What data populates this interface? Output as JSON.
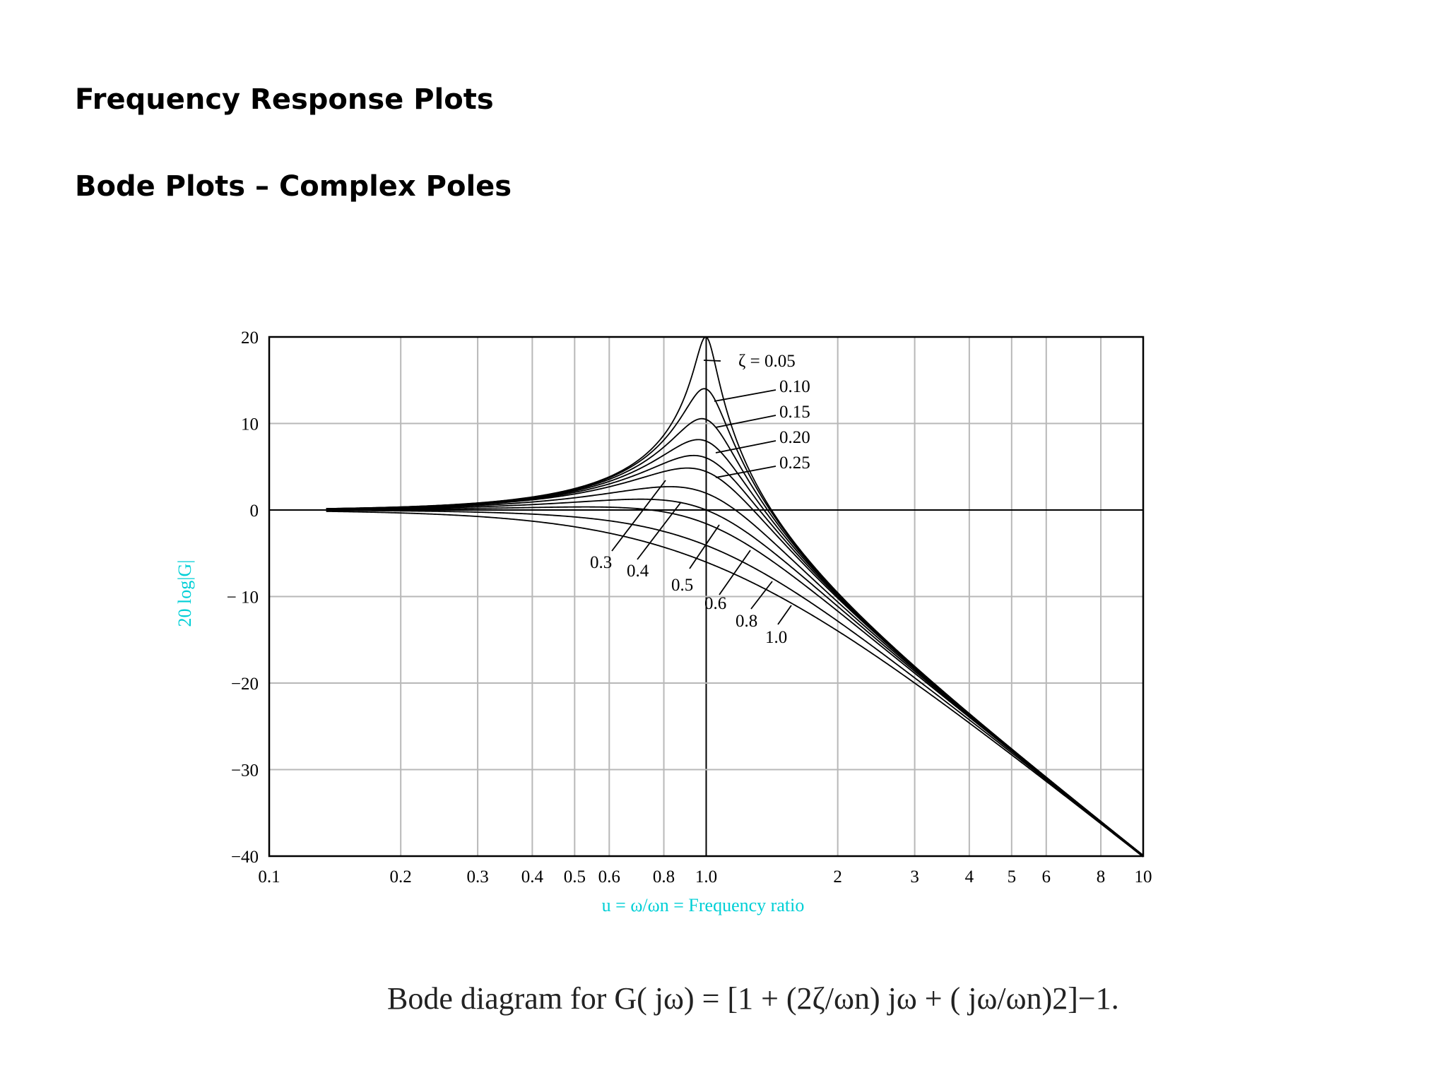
{
  "slide": {
    "title": "Frequency Response Plots",
    "subtitle": "Bode Plots – Complex Poles",
    "caption": "Bode diagram for G( jω) = [1 + (2ζ/ωn) jω + ( jω/ωn)2]−1."
  },
  "chart_data": {
    "type": "line",
    "title": "",
    "xlabel": "u = ω/ωn = Frequency ratio",
    "ylabel": "20 log|G|",
    "x_scale": "log",
    "xlim": [
      0.1,
      10
    ],
    "ylim": [
      -40,
      20
    ],
    "grid": true,
    "x_ticks": [
      0.1,
      0.2,
      0.3,
      0.4,
      0.5,
      0.6,
      0.8,
      1.0,
      2,
      3,
      4,
      5,
      6,
      8,
      10
    ],
    "x_tick_labels": [
      "0.1",
      "0.2",
      "0.3",
      "0.4",
      "0.5",
      "0.6",
      "0.8",
      "1.0",
      "2",
      "3",
      "4",
      "5",
      "6",
      "8",
      "10"
    ],
    "y_ticks": [
      20,
      10,
      0,
      -10,
      -20,
      -30,
      -40
    ],
    "y_tick_labels": [
      "20",
      "10",
      "0",
      "− 10",
      "−20",
      "−30",
      "−40"
    ],
    "zeta_values": [
      0.05,
      0.1,
      0.15,
      0.2,
      0.25,
      0.3,
      0.4,
      0.5,
      0.6,
      0.8,
      1.0
    ],
    "curve_labels": [
      {
        "zeta": 0.05,
        "text": "ζ = 0.05"
      },
      {
        "zeta": 0.1,
        "text": "0.10"
      },
      {
        "zeta": 0.15,
        "text": "0.15"
      },
      {
        "zeta": 0.2,
        "text": "0.20"
      },
      {
        "zeta": 0.25,
        "text": "0.25"
      },
      {
        "zeta": 0.3,
        "text": "0.3"
      },
      {
        "zeta": 0.4,
        "text": "0.4"
      },
      {
        "zeta": 0.5,
        "text": "0.5"
      },
      {
        "zeta": 0.6,
        "text": "0.6"
      },
      {
        "zeta": 0.8,
        "text": "0.8"
      },
      {
        "zeta": 1.0,
        "text": "1.0"
      }
    ],
    "series": [
      {
        "zeta": 0.05,
        "x": [
          0.1,
          0.2,
          0.5,
          0.8,
          1.0,
          2,
          5,
          10
        ],
        "y": [
          0.09,
          0.35,
          2.46,
          8.8,
          20.0,
          -9.5,
          -27.6,
          -40.0
        ]
      },
      {
        "zeta": 0.1,
        "x": [
          0.1,
          0.2,
          0.5,
          0.8,
          1.0,
          2,
          5,
          10
        ],
        "y": [
          0.08,
          0.34,
          2.38,
          8.3,
          14.0,
          -9.6,
          -27.6,
          -40.0
        ]
      },
      {
        "zeta": 0.15,
        "x": [
          0.1,
          0.2,
          0.5,
          0.8,
          1.0,
          2,
          5,
          10
        ],
        "y": [
          0.08,
          0.33,
          2.25,
          7.6,
          10.5,
          -9.7,
          -27.6,
          -40.0
        ]
      },
      {
        "zeta": 0.2,
        "x": [
          0.1,
          0.2,
          0.5,
          0.8,
          1.0,
          2,
          5,
          10
        ],
        "y": [
          0.08,
          0.32,
          2.08,
          6.7,
          8.0,
          -9.8,
          -27.6,
          -40.0
        ]
      },
      {
        "zeta": 0.25,
        "x": [
          0.1,
          0.2,
          0.5,
          0.8,
          1.0,
          2,
          5,
          10
        ],
        "y": [
          0.08,
          0.3,
          1.86,
          5.7,
          6.0,
          -9.9,
          -27.7,
          -40.0
        ]
      },
      {
        "zeta": 0.3,
        "x": [
          0.1,
          0.2,
          0.5,
          0.8,
          1.0,
          2,
          5,
          10
        ],
        "y": [
          0.08,
          0.28,
          1.61,
          4.7,
          4.4,
          -10.1,
          -27.7,
          -40.0
        ]
      },
      {
        "zeta": 0.4,
        "x": [
          0.1,
          0.2,
          0.5,
          0.8,
          1.0,
          2,
          5,
          10
        ],
        "y": [
          0.07,
          0.23,
          1.0,
          2.7,
          1.9,
          -10.6,
          -27.8,
          -40.0
        ]
      },
      {
        "zeta": 0.5,
        "x": [
          0.1,
          0.2,
          0.5,
          0.8,
          1.0,
          2,
          5,
          10
        ],
        "y": [
          0.06,
          0.18,
          0.27,
          0.8,
          0.0,
          -11.1,
          -27.9,
          -40.0
        ]
      },
      {
        "zeta": 0.6,
        "x": [
          0.1,
          0.2,
          0.5,
          0.8,
          1.0,
          2,
          5,
          10
        ],
        "y": [
          0.04,
          0.12,
          -0.57,
          -1.0,
          -1.6,
          -11.8,
          -28.0,
          -40.1
        ]
      },
      {
        "zeta": 0.8,
        "x": [
          0.1,
          0.2,
          0.5,
          0.8,
          1.0,
          2,
          5,
          10
        ],
        "y": [
          0.0,
          -0.04,
          -2.5,
          -4.1,
          -4.1,
          -13.2,
          -28.4,
          -40.2
        ]
      },
      {
        "zeta": 1.0,
        "x": [
          0.1,
          0.2,
          0.5,
          0.8,
          1.0,
          2,
          5,
          10
        ],
        "y": [
          -0.09,
          -0.34,
          -1.94,
          -4.3,
          -6.0,
          -14.0,
          -28.3,
          -40.1
        ]
      }
    ]
  }
}
